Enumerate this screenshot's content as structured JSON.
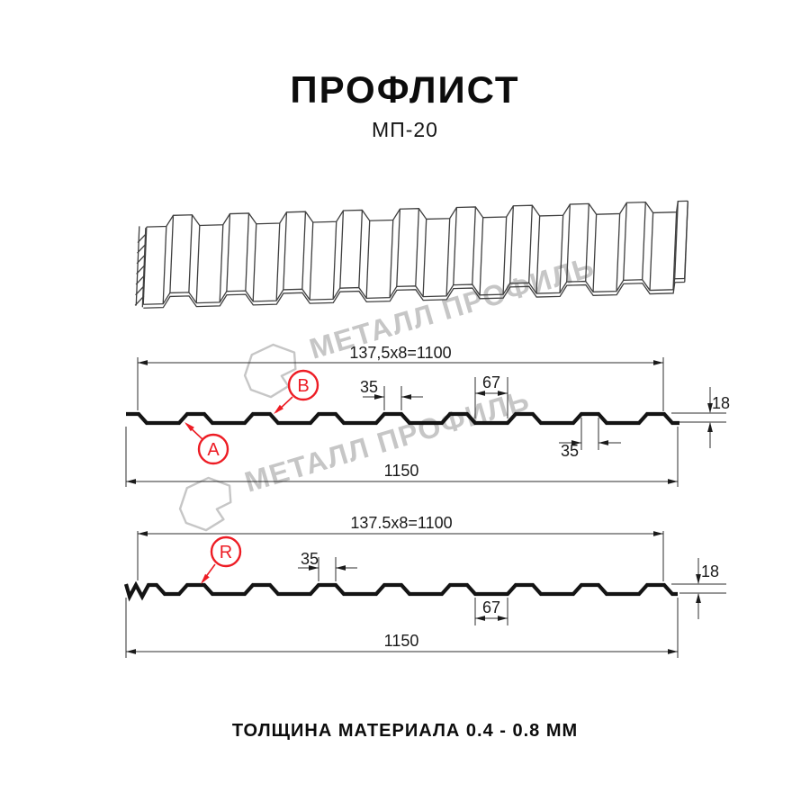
{
  "page": {
    "title": "ПРОФЛИСТ",
    "subtitle": "МП-20",
    "footer": "ТОЛЩИНА МАТЕРИАЛА 0.4 - 0.8 ММ"
  },
  "watermark": {
    "text": "МЕТАЛЛ ПРОФИЛЬ"
  },
  "colors": {
    "line": "#141414",
    "dim": "#2e2e2e",
    "red": "#ed1c24",
    "watermark": "#c6c6c6"
  },
  "sections": [
    {
      "name": "cross-section-AB",
      "width_formula": "137,5x8=1100",
      "callouts": [
        "A",
        "B"
      ],
      "dims": {
        "rib_top": "35",
        "valley": "67",
        "rib_bottom": "35",
        "overall": "1150",
        "height": "18"
      }
    },
    {
      "name": "cross-section-R",
      "width_formula": "137.5x8=1100",
      "callouts": [
        "R"
      ],
      "dims": {
        "rib_top": "35",
        "valley": "67",
        "overall": "1150",
        "height": "18"
      }
    }
  ]
}
